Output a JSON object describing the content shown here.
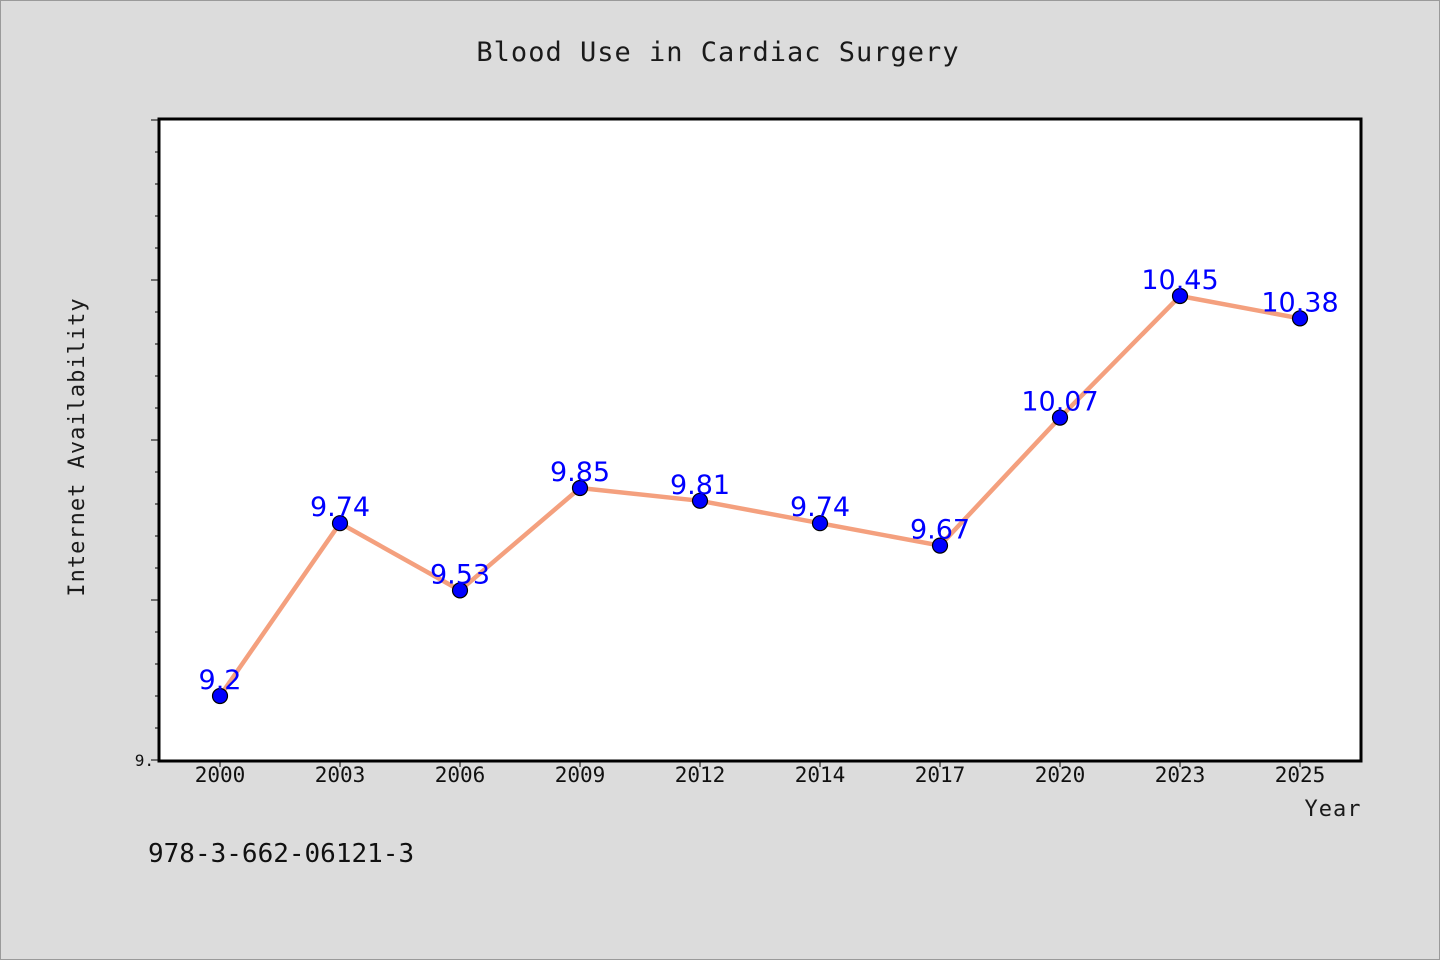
{
  "footer": {
    "isbn": "978-3-662-06121-3"
  },
  "chart_data": {
    "type": "line",
    "title": "Blood Use in Cardiac Surgery",
    "xlabel": "Year",
    "ylabel": "Internet Availability",
    "categories": [
      "2000",
      "2003",
      "2006",
      "2009",
      "2012",
      "2014",
      "2017",
      "2020",
      "2023",
      "2025"
    ],
    "series": [
      {
        "values": [
          9.2,
          9.74,
          9.53,
          9.85,
          9.81,
          9.74,
          9.67,
          10.07,
          10.45,
          10.38
        ]
      }
    ],
    "data_labels": [
      "9.2",
      "9.74",
      "9.53",
      "9.85",
      "9.81",
      "9.74",
      "9.67",
      "10.07",
      "10.45",
      "10.38"
    ],
    "y_tick_label": "9.",
    "ylim": [
      9.0,
      11.0
    ],
    "grid": false,
    "legend": "none",
    "colors": {
      "line": "#f4a07e",
      "marker": "#0000ff",
      "data_label": "#0000ff",
      "background": "#dcdcdc",
      "plot_background": "#ffffff"
    }
  }
}
